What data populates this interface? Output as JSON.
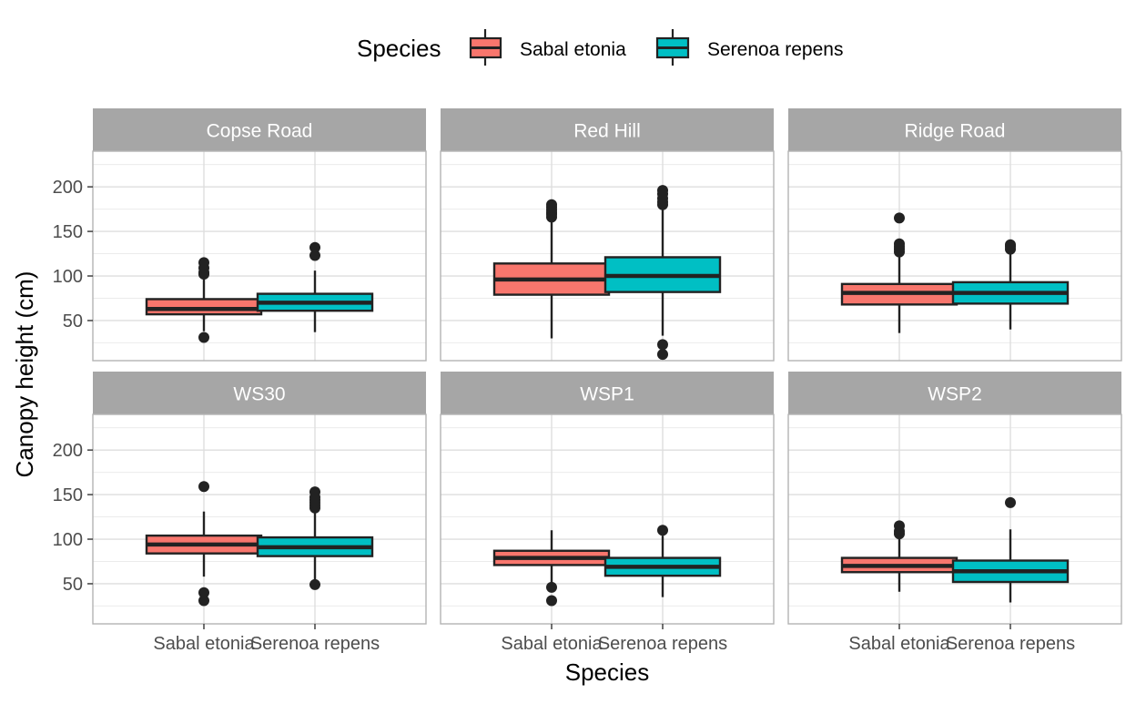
{
  "chart_data": {
    "type": "box",
    "xlabel": "Species",
    "ylabel": "Canopy height (cm)",
    "ylim": [
      5,
      240
    ],
    "y_ticks": [
      50,
      100,
      150,
      200
    ],
    "grid": true,
    "legend": {
      "title": "Species",
      "position": "top",
      "entries": [
        {
          "name": "Sabal etonia",
          "color": "#F8766D"
        },
        {
          "name": "Serenoa repens",
          "color": "#00BFC4"
        }
      ]
    },
    "categories": [
      "Sabal etonia",
      "Serenoa repens"
    ],
    "facets": [
      {
        "name": "Copse Road",
        "boxes": [
          {
            "species": "Sabal etonia",
            "min": 38,
            "q1": 57,
            "median": 63,
            "q3": 74,
            "max": 98,
            "outliers": [
              31,
              102,
              104,
              109,
              115
            ]
          },
          {
            "species": "Serenoa repens",
            "min": 37,
            "q1": 61,
            "median": 70,
            "q3": 80,
            "max": 106,
            "outliers": [
              123,
              132
            ]
          }
        ]
      },
      {
        "name": "Red Hill",
        "boxes": [
          {
            "species": "Sabal etonia",
            "min": 30,
            "q1": 79,
            "median": 96,
            "q3": 114,
            "max": 163,
            "outliers": [
              166,
              169,
              171,
              174,
              177,
              180
            ]
          },
          {
            "species": "Serenoa repens",
            "min": 33,
            "q1": 82,
            "median": 100,
            "q3": 121,
            "max": 177,
            "outliers": [
              12,
              23,
              180,
              183,
              187,
              192,
              196
            ]
          }
        ]
      },
      {
        "name": "Ridge Road",
        "boxes": [
          {
            "species": "Sabal etonia",
            "min": 36,
            "q1": 68,
            "median": 81,
            "q3": 91,
            "max": 122,
            "outliers": [
              127,
              130,
              133,
              136,
              165
            ]
          },
          {
            "species": "Serenoa repens",
            "min": 40,
            "q1": 69,
            "median": 81,
            "q3": 93,
            "max": 127,
            "outliers": [
              130,
              133,
              135
            ]
          }
        ]
      },
      {
        "name": "WS30",
        "boxes": [
          {
            "species": "Sabal etonia",
            "min": 58,
            "q1": 84,
            "median": 94,
            "q3": 104,
            "max": 131,
            "outliers": [
              31,
              40,
              159
            ]
          },
          {
            "species": "Serenoa repens",
            "min": 51,
            "q1": 81,
            "median": 91,
            "q3": 102,
            "max": 131,
            "outliers": [
              49,
              135,
              138,
              141,
              144,
              147,
              153
            ]
          }
        ]
      },
      {
        "name": "WSP1",
        "boxes": [
          {
            "species": "Sabal etonia",
            "min": 52,
            "q1": 71,
            "median": 79,
            "q3": 87,
            "max": 110,
            "outliers": [
              31,
              46
            ]
          },
          {
            "species": "Serenoa repens",
            "min": 35,
            "q1": 59,
            "median": 69,
            "q3": 79,
            "max": 104,
            "outliers": [
              110
            ]
          }
        ]
      },
      {
        "name": "WSP2",
        "boxes": [
          {
            "species": "Sabal etonia",
            "min": 41,
            "q1": 63,
            "median": 70,
            "q3": 79,
            "max": 102,
            "outliers": [
              106,
              109,
              115
            ]
          },
          {
            "species": "Serenoa repens",
            "min": 29,
            "q1": 52,
            "median": 64,
            "q3": 76,
            "max": 111,
            "outliers": [
              141
            ]
          }
        ]
      }
    ]
  }
}
